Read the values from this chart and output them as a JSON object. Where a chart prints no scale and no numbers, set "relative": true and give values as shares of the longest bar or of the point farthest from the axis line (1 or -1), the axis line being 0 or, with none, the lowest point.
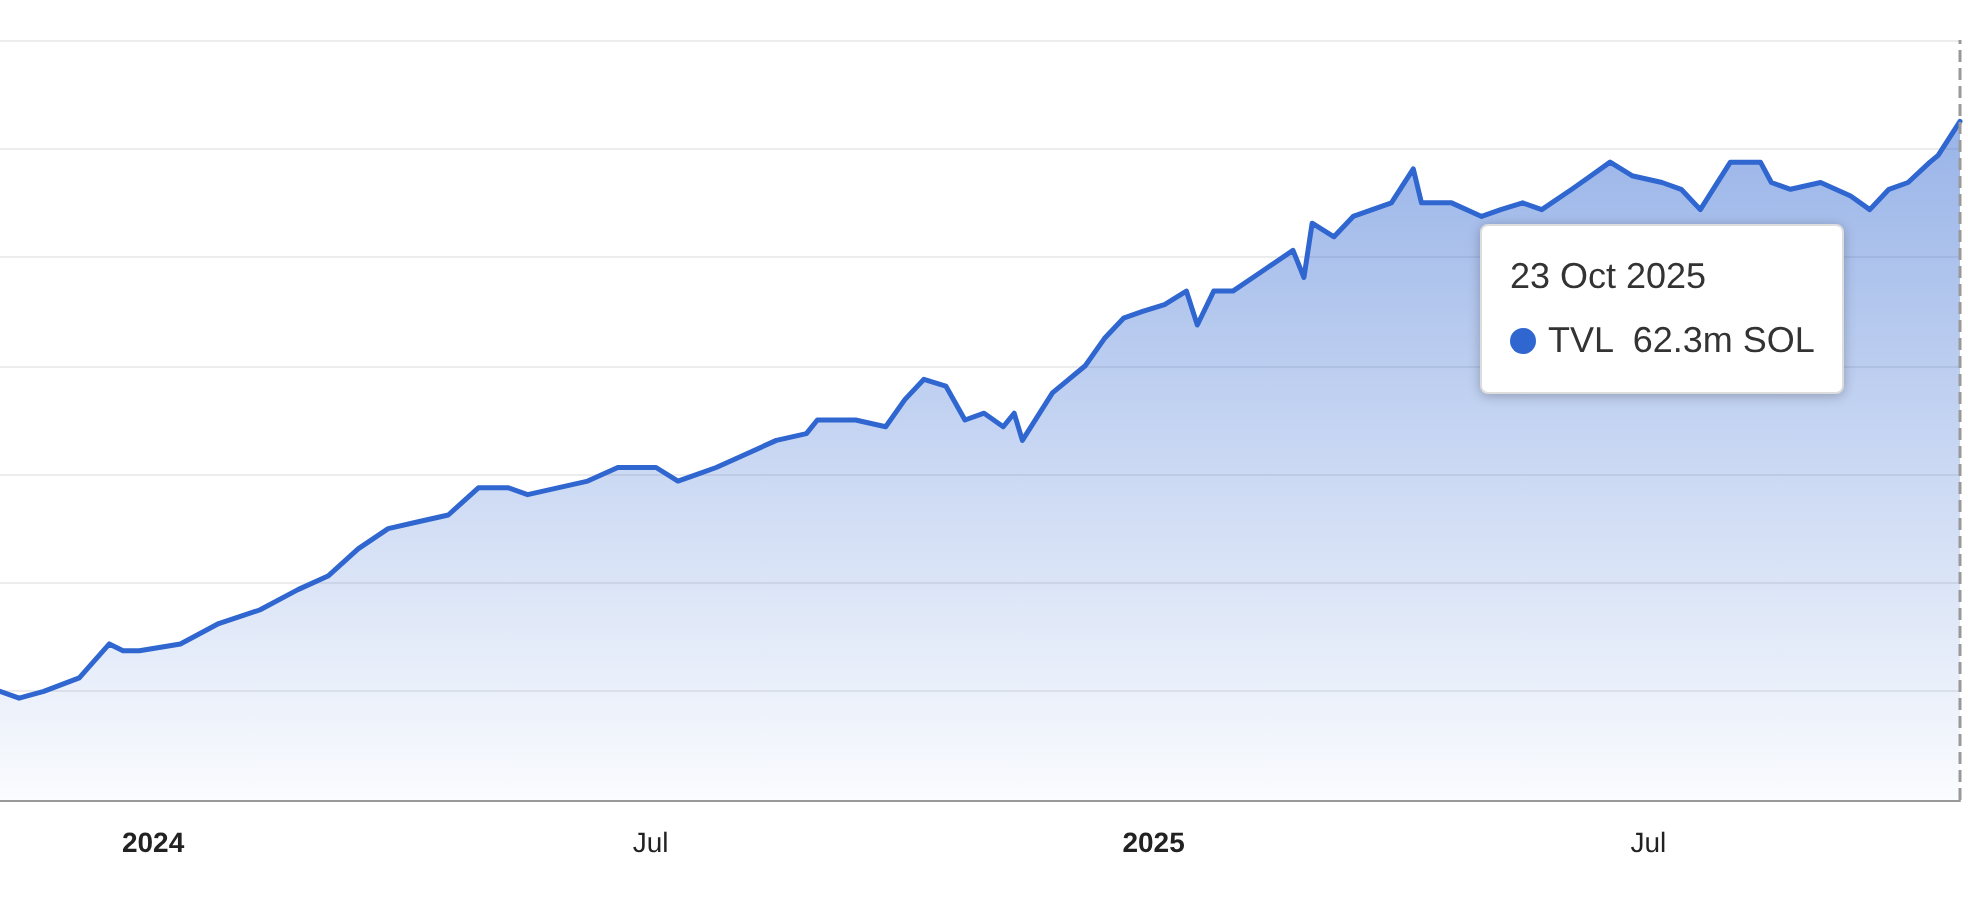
{
  "chart_data": {
    "type": "area",
    "relative": true,
    "grid": "y",
    "legend": "top right",
    "marker": "none",
    "line_style": "solid",
    "xlim": [
      "2023-11-06",
      "2025-10-23"
    ],
    "xticks": [
      {
        "value": "2024-01-01",
        "label": "2024"
      },
      {
        "value": "2024-07-01",
        "label": "Jul"
      },
      {
        "value": "2025-01-01",
        "label": "2025"
      },
      {
        "value": "2025-07-01",
        "label": "Jul"
      }
    ],
    "series": [
      {
        "name": "TVL",
        "color": "#2f66d0",
        "x": [
          "2023-11-06",
          "2023-11-13",
          "2023-11-22",
          "2023-12-05",
          "2023-12-16",
          "2023-12-21",
          "2023-12-27",
          "2024-01-11",
          "2024-01-25",
          "2024-02-09",
          "2024-02-23",
          "2024-03-05",
          "2024-03-16",
          "2024-03-27",
          "2024-04-07",
          "2024-04-18",
          "2024-04-29",
          "2024-05-10",
          "2024-05-17",
          "2024-05-28",
          "2024-06-08",
          "2024-06-19",
          "2024-06-26",
          "2024-07-03",
          "2024-07-11",
          "2024-07-18",
          "2024-07-25",
          "2024-08-05",
          "2024-08-16",
          "2024-08-27",
          "2024-08-31",
          "2024-09-07",
          "2024-09-14",
          "2024-09-25",
          "2024-10-02",
          "2024-10-09",
          "2024-10-17",
          "2024-10-24",
          "2024-10-31",
          "2024-11-07",
          "2024-11-11",
          "2024-11-14",
          "2024-11-25",
          "2024-12-07",
          "2024-12-14",
          "2024-12-21",
          "2024-12-28",
          "2025-01-05",
          "2025-01-13",
          "2025-01-17",
          "2025-01-23",
          "2025-01-30",
          "2025-02-10",
          "2025-02-21",
          "2025-02-25",
          "2025-02-28",
          "2025-03-08",
          "2025-03-15",
          "2025-03-22",
          "2025-03-29",
          "2025-04-06",
          "2025-04-09",
          "2025-04-20",
          "2025-05-01",
          "2025-05-08",
          "2025-05-16",
          "2025-05-23",
          "2025-06-03",
          "2025-06-10",
          "2025-06-17",
          "2025-06-25",
          "2025-07-06",
          "2025-07-13",
          "2025-07-20",
          "2025-07-31",
          "2025-08-11",
          "2025-08-15",
          "2025-08-22",
          "2025-09-02",
          "2025-09-13",
          "2025-09-20",
          "2025-09-27",
          "2025-10-04",
          "2025-10-12",
          "2025-10-15",
          "2025-10-23"
        ],
        "values": [
          0.16,
          0.15,
          0.16,
          0.18,
          0.23,
          0.22,
          0.22,
          0.23,
          0.26,
          0.28,
          0.31,
          0.33,
          0.37,
          0.4,
          0.41,
          0.42,
          0.46,
          0.46,
          0.45,
          0.46,
          0.47,
          0.49,
          0.49,
          0.49,
          0.47,
          0.48,
          0.49,
          0.51,
          0.53,
          0.54,
          0.56,
          0.56,
          0.56,
          0.55,
          0.59,
          0.62,
          0.61,
          0.56,
          0.57,
          0.55,
          0.57,
          0.53,
          0.6,
          0.64,
          0.68,
          0.71,
          0.72,
          0.73,
          0.75,
          0.7,
          0.75,
          0.75,
          0.78,
          0.81,
          0.77,
          0.85,
          0.83,
          0.86,
          0.87,
          0.88,
          0.93,
          0.88,
          0.88,
          0.86,
          0.87,
          0.88,
          0.87,
          0.9,
          0.92,
          0.94,
          0.92,
          0.91,
          0.9,
          0.87,
          0.94,
          0.94,
          0.91,
          0.9,
          0.91,
          0.89,
          0.87,
          0.9,
          0.91,
          0.94,
          0.95,
          1
        ]
      }
    ],
    "ref_lines": [
      {
        "axis": "x",
        "value": "2025-10-23",
        "color": "#999999",
        "line_style": "dashed"
      }
    ],
    "annotations": [
      "23 Oct 2025",
      "62.3m SOL"
    ]
  }
}
